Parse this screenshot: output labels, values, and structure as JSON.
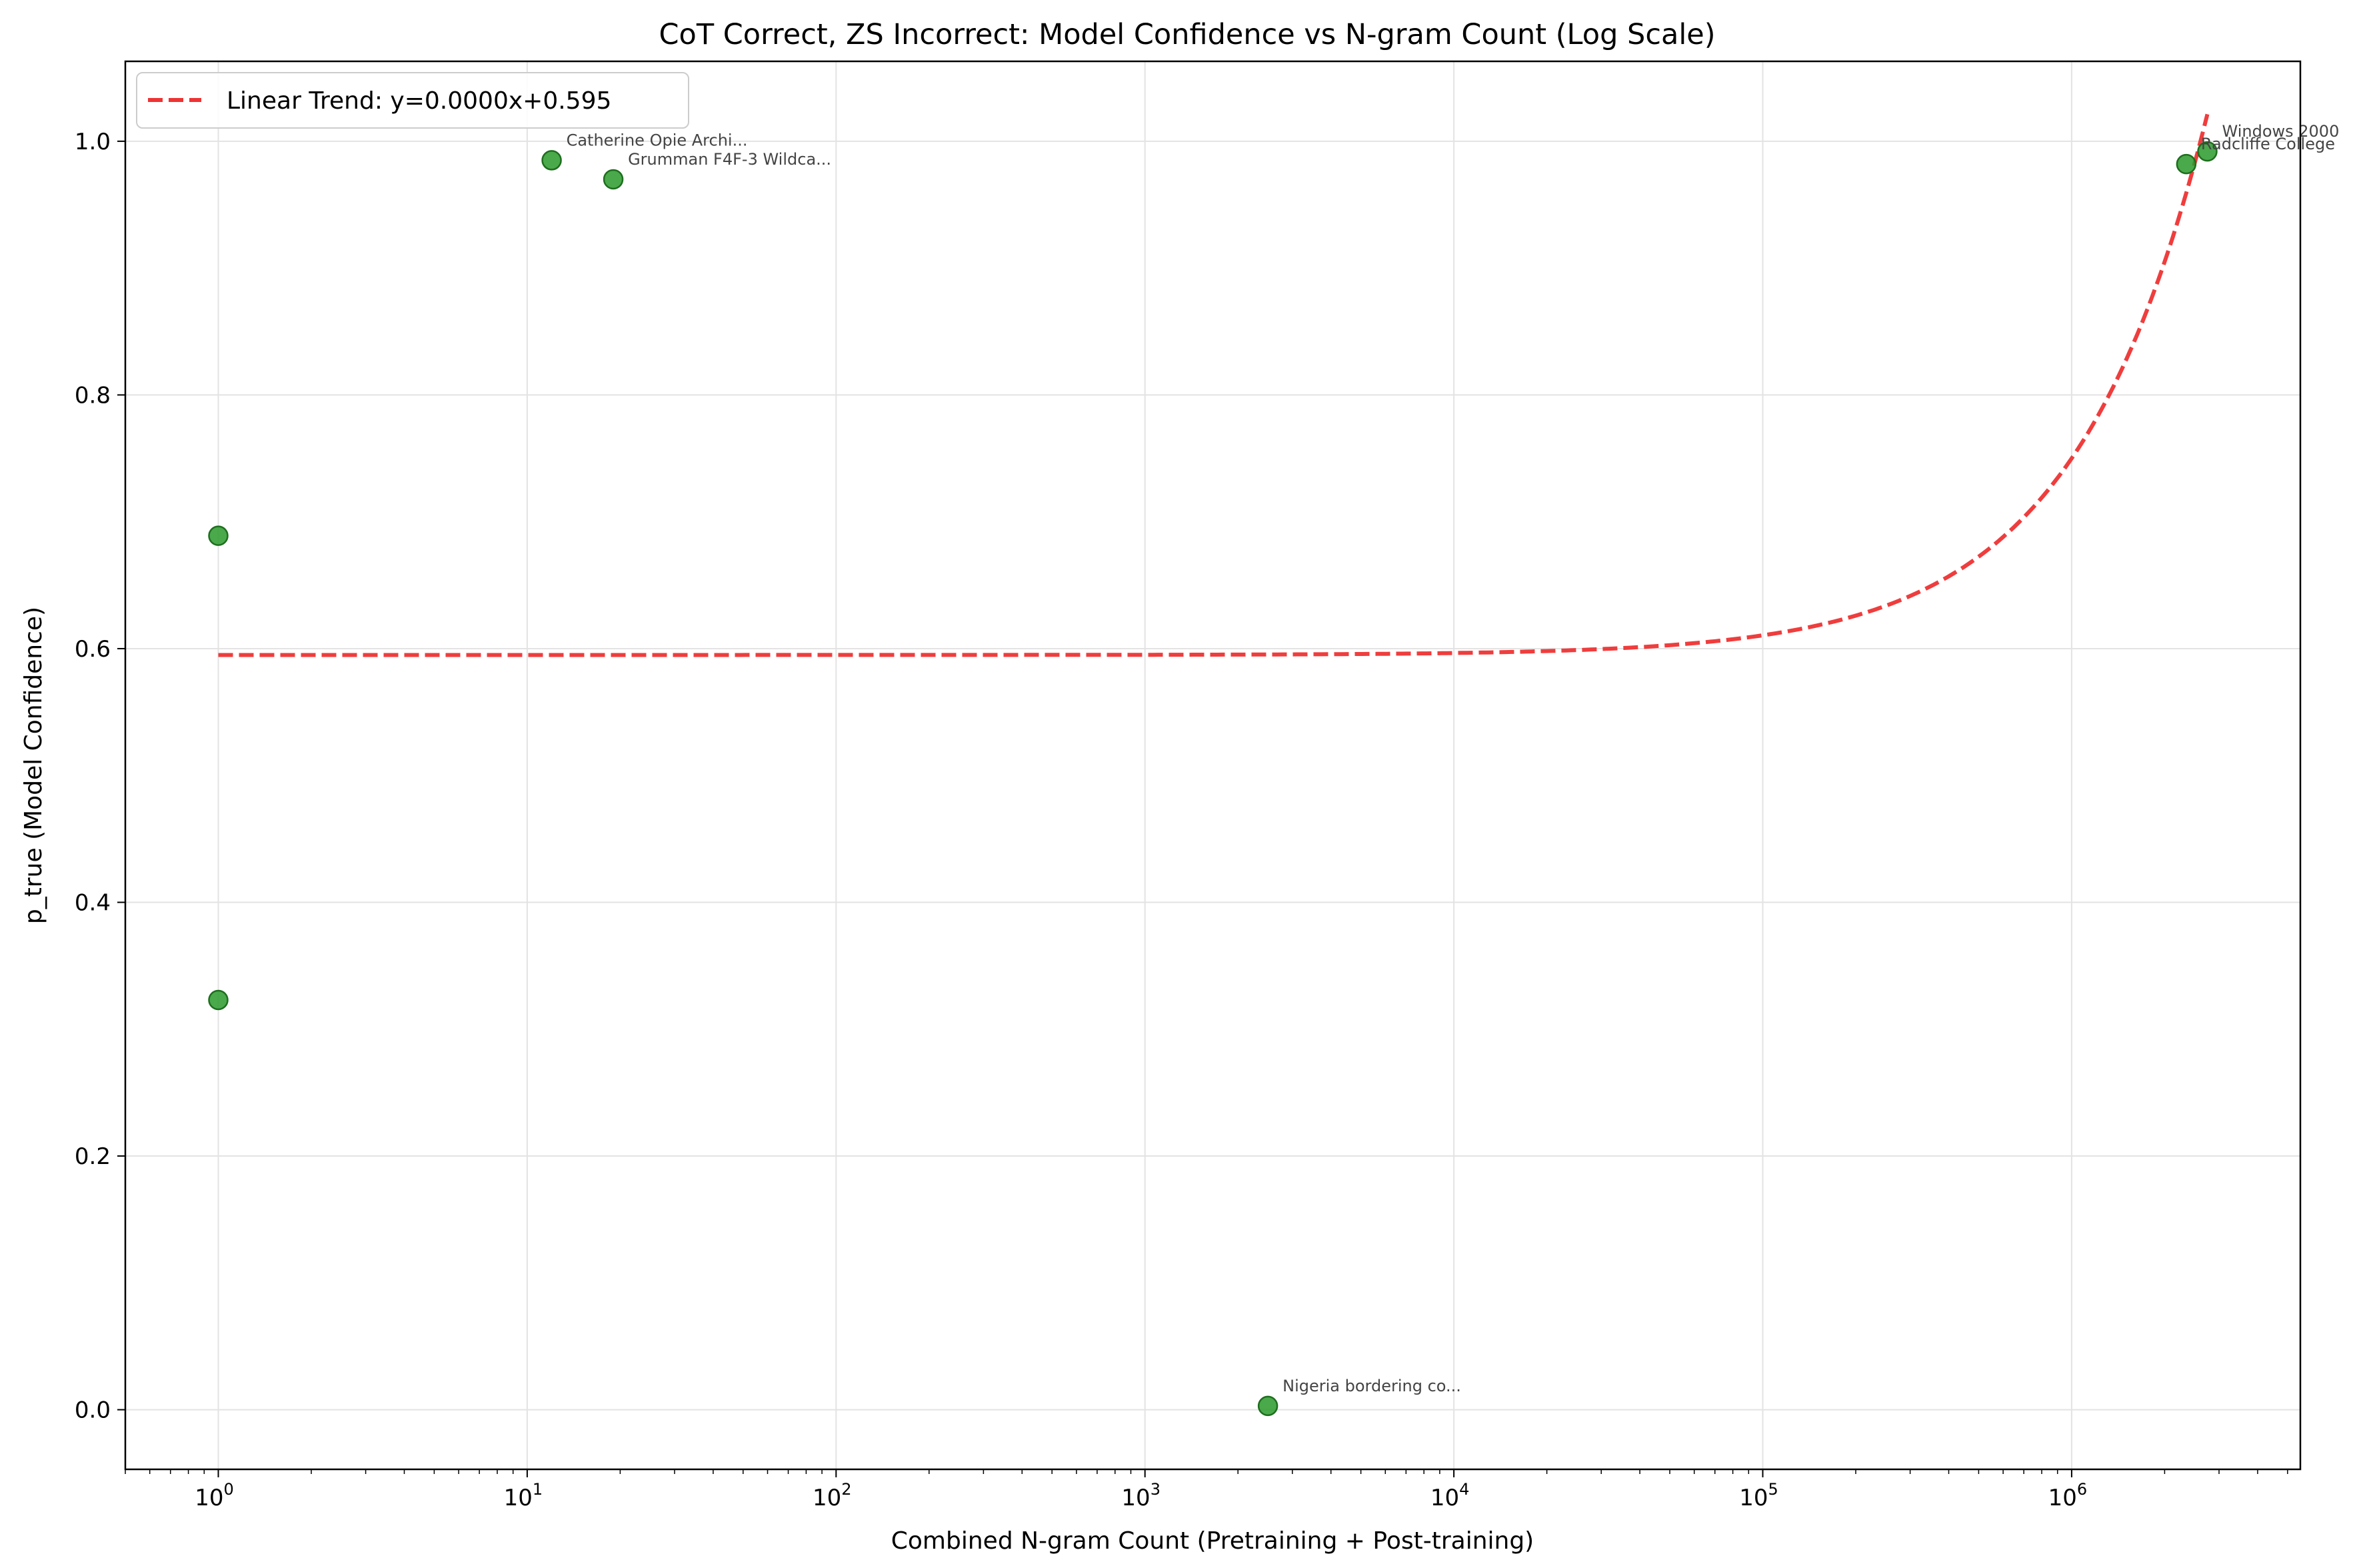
{
  "chart_data": {
    "type": "scatter",
    "title": "CoT Correct, ZS Incorrect: Model Confidence vs N-gram Count (Log Scale)",
    "xlabel": "Combined N-gram Count (Pretraining + Post-training)",
    "ylabel": "p_true (Model Confidence)",
    "xscale": "log",
    "xlim": [
      0.5,
      5500000
    ],
    "ylim": [
      -0.047,
      1.063
    ],
    "x_ticks": [
      {
        "value": 1,
        "base": "10",
        "exp": "0"
      },
      {
        "value": 10,
        "base": "10",
        "exp": "1"
      },
      {
        "value": 100,
        "base": "10",
        "exp": "2"
      },
      {
        "value": 1000,
        "base": "10",
        "exp": "3"
      },
      {
        "value": 10000,
        "base": "10",
        "exp": "4"
      },
      {
        "value": 100000,
        "base": "10",
        "exp": "5"
      },
      {
        "value": 1000000,
        "base": "10",
        "exp": "6"
      }
    ],
    "y_ticks": [
      {
        "value": 0.0,
        "label": "0.0"
      },
      {
        "value": 0.2,
        "label": "0.2"
      },
      {
        "value": 0.4,
        "label": "0.4"
      },
      {
        "value": 0.6,
        "label": "0.6"
      },
      {
        "value": 0.8,
        "label": "0.8"
      },
      {
        "value": 1.0,
        "label": "1.0"
      }
    ],
    "grid": true,
    "legend_position": "top-left",
    "point_color": "#2a9a2a",
    "trend_color": "#ee3333",
    "points": [
      {
        "x": 1,
        "y": 0.689,
        "label": ""
      },
      {
        "x": 1,
        "y": 0.323,
        "label": ""
      },
      {
        "x": 12,
        "y": 0.985,
        "label": "Catherine Opie Archi..."
      },
      {
        "x": 19,
        "y": 0.97,
        "label": "Grumman F4F-3 Wildca..."
      },
      {
        "x": 2500,
        "y": 0.003,
        "label": "Nigeria bordering co..."
      },
      {
        "x": 2350000,
        "y": 0.982,
        "label": "Radcliffe College"
      },
      {
        "x": 2750000,
        "y": 0.992,
        "label": "Windows 2000"
      }
    ],
    "trend": {
      "name": "Linear Trend: y=0.0000x+0.595",
      "intercept": 0.595,
      "slope": 1.55e-07,
      "x_range": [
        1,
        2750000
      ]
    }
  }
}
